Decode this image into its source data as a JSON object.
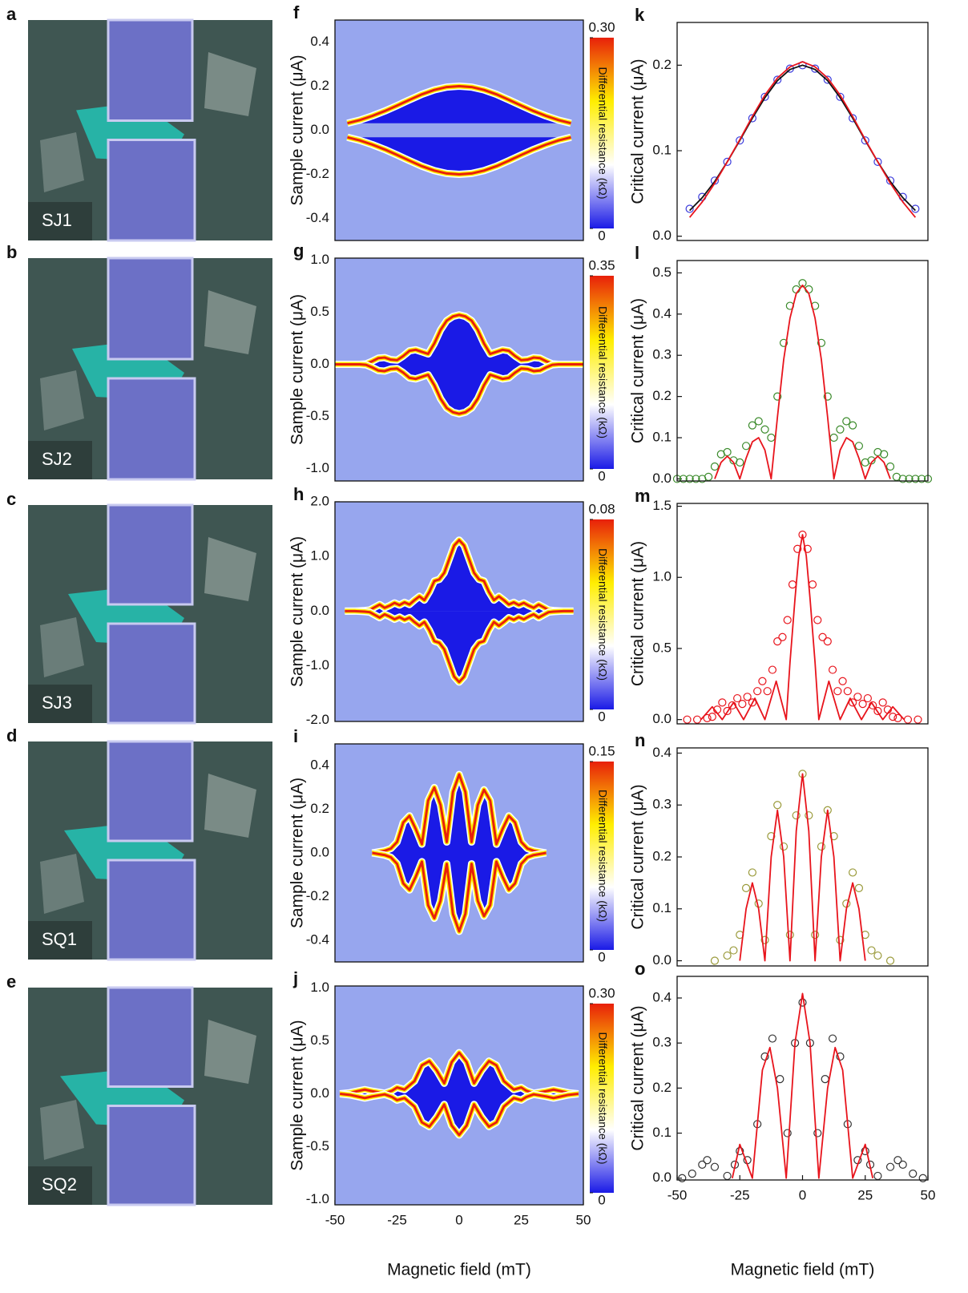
{
  "images": [
    {
      "letter": "a",
      "label": "SJ1"
    },
    {
      "letter": "b",
      "label": "SJ2"
    },
    {
      "letter": "c",
      "label": "SJ3"
    },
    {
      "letter": "d",
      "label": "SQ1"
    },
    {
      "letter": "e",
      "label": "SQ2"
    }
  ],
  "chart_data": [
    {
      "type": "heatmap",
      "letter": "f",
      "ylabel": "Sample current (μA)",
      "colorbar_label": "Differential resistance (kΩ)",
      "xlim": [
        -50,
        50
      ],
      "ylim": [
        -0.5,
        0.5
      ],
      "yticks": [
        0.4,
        0.2,
        {
          "value": 0,
          "label": "0.0"
        },
        -0.2,
        -0.4
      ],
      "clim": [
        0,
        0.3
      ],
      "cticks": [
        {
          "value": 0.3,
          "label": "0.30"
        },
        0
      ],
      "colormap": [
        "#1a1ae6",
        "#ffffff",
        "#ffee00",
        "#e8200a"
      ]
    },
    {
      "type": "heatmap",
      "letter": "g",
      "ylabel": "Sample current (μA)",
      "colorbar_label": "Differential resistance (kΩ)",
      "xlim": [
        -50,
        50
      ],
      "ylim": [
        -1.12,
        1.02
      ],
      "yticks": [
        {
          "value": 1,
          "label": "1.0"
        },
        0.5,
        {
          "value": 0,
          "label": "0.0"
        },
        -0.5,
        {
          "value": -1,
          "label": "-1.0"
        }
      ],
      "clim": [
        0,
        0.35
      ],
      "cticks": [
        0.35,
        0
      ],
      "colormap": [
        "#1a1ae6",
        "#ffffff",
        "#ffee00",
        "#e8200a"
      ]
    },
    {
      "type": "heatmap",
      "letter": "h",
      "ylabel": "Sample current (μA)",
      "colorbar_label": "Differential resistance (kΩ)",
      "xlim": [
        -50,
        50
      ],
      "ylim": [
        -2.02,
        2.0
      ],
      "yticks": [
        {
          "value": 2,
          "label": "2.0"
        },
        {
          "value": 1,
          "label": "1.0"
        },
        {
          "value": 0,
          "label": "0.0"
        },
        {
          "value": -1,
          "label": "-1.0"
        },
        {
          "value": -2,
          "label": "-2.0"
        }
      ],
      "clim": [
        0,
        0.08
      ],
      "cticks": [
        0.08,
        0
      ],
      "colormap": [
        "#1a1ae6",
        "#ffffff",
        "#ffee00",
        "#e8200a"
      ]
    },
    {
      "type": "heatmap",
      "letter": "i",
      "ylabel": "Sample current (μA)",
      "colorbar_label": "Differential resistance (kΩ)",
      "xlim": [
        -50,
        50
      ],
      "ylim": [
        -0.5,
        0.5
      ],
      "yticks": [
        0.4,
        0.2,
        {
          "value": 0,
          "label": "0.0"
        },
        -0.2,
        -0.4
      ],
      "clim": [
        0,
        0.15
      ],
      "cticks": [
        0.15,
        0
      ],
      "colormap": [
        "#1a1ae6",
        "#ffffff",
        "#ffee00",
        "#e8200a"
      ]
    },
    {
      "type": "heatmap",
      "letter": "j",
      "ylabel": "Sample current (μA)",
      "colorbar_label": "Differential resistance (kΩ)",
      "xlabel": "Magnetic field (mT)",
      "xlim": [
        -50,
        50
      ],
      "ylim": [
        -1.05,
        1.02
      ],
      "yticks": [
        {
          "value": 1,
          "label": "1.0"
        },
        0.5,
        {
          "value": 0,
          "label": "0.0"
        },
        -0.5,
        {
          "value": -1,
          "label": "-1.0"
        }
      ],
      "xticks": [
        -50,
        -25,
        0,
        25,
        50
      ],
      "clim": [
        0,
        0.3
      ],
      "cticks": [
        {
          "value": 0.3,
          "label": "0.30"
        },
        0
      ],
      "colormap": [
        "#1a1ae6",
        "#ffffff",
        "#ffee00",
        "#e8200a"
      ]
    },
    {
      "type": "scatter",
      "letter": "k",
      "ylabel": "Critical current (μA)",
      "xlim": [
        -50,
        50
      ],
      "ylim": [
        -0.005,
        0.25
      ],
      "yticks": [
        {
          "value": 0,
          "label": "0.0"
        },
        0.1,
        0.2
      ],
      "series": [
        {
          "style": "circle",
          "color": "#3b3bdc",
          "x": [
            -45,
            -40,
            -35,
            -30,
            -25,
            -20,
            -15,
            -10,
            -5,
            0,
            5,
            10,
            15,
            20,
            25,
            30,
            35,
            40,
            45
          ],
          "values": [
            0.032,
            0.046,
            0.065,
            0.087,
            0.112,
            0.138,
            0.163,
            0.183,
            0.196,
            0.2,
            0.196,
            0.183,
            0.163,
            0.138,
            0.112,
            0.087,
            0.065,
            0.046,
            0.032
          ]
        },
        {
          "style": "line",
          "color": "#111111",
          "x": [
            -45,
            -40,
            -35,
            -30,
            -25,
            -20,
            -15,
            -10,
            -5,
            0,
            5,
            10,
            15,
            20,
            25,
            30,
            35,
            40,
            45
          ],
          "values": [
            0.03,
            0.045,
            0.064,
            0.087,
            0.112,
            0.138,
            0.162,
            0.182,
            0.195,
            0.2,
            0.195,
            0.182,
            0.162,
            0.138,
            0.112,
            0.087,
            0.064,
            0.045,
            0.03
          ]
        },
        {
          "style": "line",
          "color": "#e8141c",
          "x": [
            -45,
            -40,
            -35,
            -30,
            -25,
            -20,
            -15,
            -10,
            -5,
            0,
            5,
            10,
            15,
            20,
            25,
            30,
            35,
            40,
            45
          ],
          "values": [
            0.022,
            0.04,
            0.062,
            0.087,
            0.113,
            0.14,
            0.165,
            0.185,
            0.198,
            0.204,
            0.198,
            0.185,
            0.165,
            0.14,
            0.113,
            0.087,
            0.062,
            0.04,
            0.022
          ]
        }
      ]
    },
    {
      "type": "scatter",
      "letter": "l",
      "ylabel": "Critical current (μA)",
      "xlim": [
        -50,
        50
      ],
      "ylim": [
        -0.005,
        0.53
      ],
      "yticks": [
        {
          "value": 0,
          "label": "0.0"
        },
        0.1,
        0.2,
        0.3,
        0.4,
        0.5
      ],
      "series": [
        {
          "style": "circle",
          "color": "#3a8a2a",
          "x": [
            -50,
            -47.5,
            -45,
            -42.5,
            -40,
            -37.5,
            -35,
            -32.5,
            -30,
            -27.5,
            -25,
            -22.5,
            -20,
            -17.5,
            -15,
            -12.5,
            -10,
            -7.5,
            -5,
            -2.5,
            0,
            2.5,
            5,
            7.5,
            10,
            12.5,
            15,
            17.5,
            20,
            22.5,
            25,
            27.5,
            30,
            32.5,
            35,
            37.5,
            40,
            42.5,
            45,
            47.5,
            50
          ],
          "values": [
            0,
            0,
            0,
            0,
            0,
            0.005,
            0.03,
            0.06,
            0.065,
            0.045,
            0.04,
            0.08,
            0.13,
            0.14,
            0.12,
            0.1,
            0.2,
            0.33,
            0.42,
            0.46,
            0.475,
            0.46,
            0.42,
            0.33,
            0.2,
            0.1,
            0.12,
            0.14,
            0.13,
            0.08,
            0.04,
            0.045,
            0.065,
            0.06,
            0.03,
            0.005,
            0,
            0,
            0,
            0,
            0
          ]
        },
        {
          "style": "line",
          "color": "#e8141c",
          "x": [
            -35,
            -32.5,
            -30,
            -27.5,
            -25,
            -22.5,
            -20,
            -17.5,
            -15,
            -12.5,
            -10,
            -7.5,
            -5,
            -2.5,
            0,
            2.5,
            5,
            7.5,
            10,
            12.5,
            15,
            17.5,
            20,
            22.5,
            25,
            27.5,
            30,
            32.5,
            35
          ],
          "values": [
            0,
            0.04,
            0.055,
            0.04,
            0,
            0.05,
            0.09,
            0.1,
            0.07,
            0,
            0.15,
            0.29,
            0.39,
            0.45,
            0.47,
            0.45,
            0.39,
            0.29,
            0.15,
            0,
            0.07,
            0.1,
            0.09,
            0.05,
            0,
            0.04,
            0.055,
            0.04,
            0
          ]
        }
      ]
    },
    {
      "type": "scatter",
      "letter": "m",
      "ylabel": "Critical current (μA)",
      "xlim": [
        -50,
        50
      ],
      "ylim": [
        -0.03,
        1.52
      ],
      "yticks": [
        {
          "value": 0,
          "label": "0.0"
        },
        0.5,
        {
          "value": 1,
          "label": "1.0"
        },
        1.5
      ],
      "series": [
        {
          "style": "circle",
          "color": "#e8141c",
          "x": [
            -46,
            -42,
            -38,
            -36,
            -34,
            -32,
            -30,
            -28,
            -26,
            -24,
            -22,
            -20,
            -18,
            -16,
            -14,
            -12,
            -10,
            -8,
            -6,
            -4,
            -2,
            0,
            2,
            4,
            6,
            8,
            10,
            12,
            14,
            16,
            18,
            20,
            22,
            24,
            26,
            28,
            30,
            32,
            34,
            36,
            38,
            42,
            46
          ],
          "values": [
            0,
            0,
            0.01,
            0.02,
            0.07,
            0.12,
            0.06,
            0.1,
            0.15,
            0.11,
            0.16,
            0.12,
            0.2,
            0.27,
            0.2,
            0.35,
            0.55,
            0.58,
            0.7,
            0.95,
            1.2,
            1.3,
            1.2,
            0.95,
            0.7,
            0.58,
            0.55,
            0.35,
            0.2,
            0.27,
            0.2,
            0.12,
            0.16,
            0.11,
            0.15,
            0.1,
            0.06,
            0.12,
            0.07,
            0.02,
            0.01,
            0,
            0
          ]
        },
        {
          "style": "line",
          "color": "#e8141c",
          "x": [
            -40.5,
            -36,
            -32,
            -27.5,
            -23.5,
            -19,
            -15,
            -10.5,
            -6.5,
            -5,
            -3,
            -1.5,
            0,
            1.5,
            3,
            5,
            6.5,
            10.5,
            15,
            19,
            23.5,
            27.5,
            32,
            36,
            40.5
          ],
          "values": [
            0,
            0.09,
            0,
            0.12,
            0,
            0.15,
            0,
            0.27,
            0,
            0.4,
            0.85,
            1.15,
            1.3,
            1.15,
            0.85,
            0.4,
            0,
            0.27,
            0,
            0.15,
            0,
            0.12,
            0,
            0.09,
            0
          ]
        }
      ]
    },
    {
      "type": "scatter",
      "letter": "n",
      "ylabel": "Critical current (μA)",
      "xlim": [
        -50,
        50
      ],
      "ylim": [
        -0.01,
        0.41
      ],
      "yticks": [
        {
          "value": 0,
          "label": "0.0"
        },
        0.1,
        0.2,
        0.3,
        0.4
      ],
      "series": [
        {
          "style": "circle",
          "color": "#9a9a3a",
          "x": [
            -35,
            -30,
            -27.5,
            -25,
            -22.5,
            -20,
            -17.5,
            -15,
            -12.5,
            -10,
            -7.5,
            -5,
            -2.5,
            0,
            2.5,
            5,
            7.5,
            10,
            12.5,
            15,
            17.5,
            20,
            22.5,
            25,
            27.5,
            30,
            35
          ],
          "values": [
            0,
            0.01,
            0.02,
            0.05,
            0.14,
            0.17,
            0.11,
            0.04,
            0.24,
            0.3,
            0.22,
            0.05,
            0.28,
            0.36,
            0.28,
            0.05,
            0.22,
            0.29,
            0.24,
            0.04,
            0.11,
            0.17,
            0.14,
            0.05,
            0.02,
            0.01,
            0
          ]
        },
        {
          "style": "line",
          "color": "#e8141c",
          "x": [
            -25,
            -22.5,
            -20,
            -17.5,
            -15,
            -12.5,
            -10,
            -7.5,
            -5,
            -2.5,
            0,
            2.5,
            5,
            7.5,
            10,
            12.5,
            15,
            17.5,
            20,
            22.5,
            25
          ],
          "values": [
            0,
            0.1,
            0.15,
            0.1,
            0,
            0.2,
            0.29,
            0.2,
            0,
            0.25,
            0.36,
            0.25,
            0,
            0.2,
            0.29,
            0.2,
            0,
            0.1,
            0.15,
            0.1,
            0
          ]
        }
      ]
    },
    {
      "type": "scatter",
      "letter": "o",
      "ylabel": "Critical current (μA)",
      "xlabel": "Magnetic field (mT)",
      "xlim": [
        -50,
        50
      ],
      "ylim": [
        -0.004,
        0.448
      ],
      "yticks": [
        {
          "value": 0,
          "label": "0.0"
        },
        0.1,
        0.2,
        0.3,
        0.4
      ],
      "xticks": [
        -50,
        -25,
        0,
        25,
        50
      ],
      "series": [
        {
          "style": "circle",
          "color": "#333333",
          "x": [
            -48,
            -44,
            -40,
            -38,
            -35,
            -30,
            -27,
            -25,
            -22,
            -18,
            -15,
            -12,
            -9,
            -6,
            -3,
            0,
            3,
            6,
            9,
            12,
            15,
            18,
            22,
            25,
            27,
            30,
            35,
            38,
            40,
            44,
            48
          ],
          "values": [
            0,
            0.01,
            0.03,
            0.04,
            0.025,
            0.005,
            0.03,
            0.06,
            0.04,
            0.12,
            0.27,
            0.31,
            0.22,
            0.1,
            0.3,
            0.39,
            0.3,
            0.1,
            0.22,
            0.31,
            0.27,
            0.12,
            0.04,
            0.06,
            0.03,
            0.005,
            0.025,
            0.04,
            0.03,
            0.01,
            0
          ]
        },
        {
          "style": "line",
          "color": "#e8141c",
          "x": [
            -28,
            -25,
            -20,
            -16,
            -13,
            -10,
            -6.5,
            -3,
            0,
            3,
            6.5,
            10,
            13,
            16,
            20,
            25,
            28
          ],
          "values": [
            0,
            0.075,
            0,
            0.24,
            0.29,
            0.2,
            0,
            0.3,
            0.41,
            0.3,
            0,
            0.2,
            0.29,
            0.24,
            0,
            0.075,
            0
          ]
        }
      ]
    }
  ]
}
